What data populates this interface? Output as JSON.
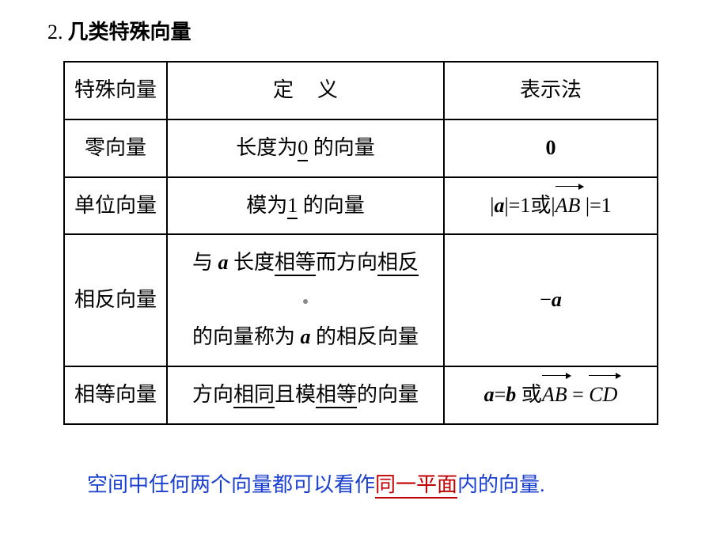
{
  "heading": {
    "num": "2.",
    "title": "几类特殊向量"
  },
  "header": {
    "c1": "特殊向量",
    "c2a": "定",
    "c2b": "义",
    "c3": "表示法"
  },
  "rows": {
    "r1": {
      "name": "零向量",
      "def_pre": "长度为",
      "def_u": "0",
      "def_post": " 的向量",
      "rep": "0"
    },
    "r2": {
      "name": "单位向量",
      "def_pre": "模为",
      "def_u": "1",
      "def_post": " 的向量",
      "rep_a": "a",
      "rep_eq1": "|=1",
      "rep_or": "或",
      "rep_ab": "AB",
      "rep_eq2": " |=1"
    },
    "r3": {
      "name": "相反向量",
      "l1_pre": "与 ",
      "l1_a": "a",
      "l1_mid": " 长度",
      "l1_u1": "相等",
      "l1_mid2": "而方向",
      "l1_u2": "相反",
      "l2_pre": "的向量称为 ",
      "l2_a": "a",
      "l2_post": " 的相反向量",
      "rep_neg": "−",
      "rep_a": "a"
    },
    "r4": {
      "name": "相等向量",
      "d_pre": "方向",
      "d_u1": "相同",
      "d_mid": "且模",
      "d_u2": "相等",
      "d_post": "的向量",
      "rep_a": "a",
      "rep_eq": "=",
      "rep_b": "b",
      "rep_or": " 或",
      "rep_ab": "AB",
      "rep_eq2": " = ",
      "rep_cd": "CD"
    }
  },
  "note": {
    "pre": "空间中任何两个向量都可以看作",
    "u": "同一平面",
    "post": "内的向量."
  }
}
